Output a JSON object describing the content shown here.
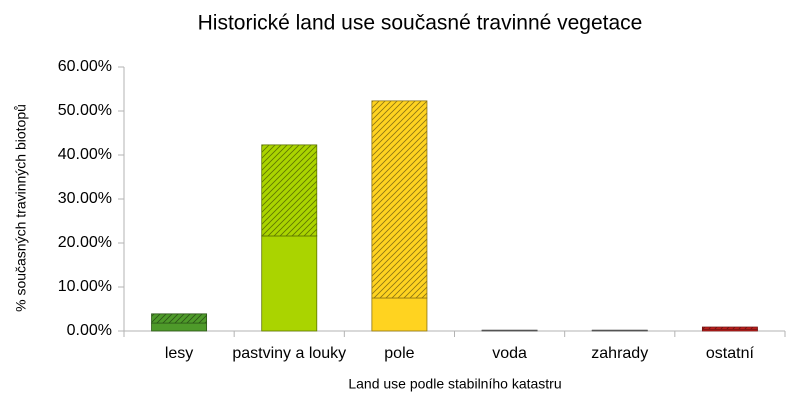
{
  "chart_data": {
    "type": "stacked_bar",
    "title": "Historické land use současné travinné vegetace",
    "x_label": "Land use podle stabilního katastru",
    "y_label": "% současných travinných biotopů",
    "categories": [
      "lesy",
      "pastviny a louky",
      "pole",
      "voda",
      "zahrady",
      "ostatní"
    ],
    "colors": [
      "#4e9a2a",
      "#aad400",
      "#ffd320",
      "#999999",
      "#999999",
      "#c9211e"
    ],
    "series": [
      {
        "values": [
          1.8,
          21.6,
          7.5,
          0.1,
          0.1,
          0.4
        ]
      },
      {
        "values": [
          2.1,
          20.7,
          44.8,
          0.1,
          0.1,
          0.5
        ],
        "pattern": "hatch"
      }
    ],
    "ylim": [
      0,
      60
    ],
    "yticks": [
      {
        "value": 0,
        "label": "0.00%"
      },
      {
        "value": 10,
        "label": "10.00%"
      },
      {
        "value": 20,
        "label": "20.00%"
      },
      {
        "value": 30,
        "label": "30.00%"
      },
      {
        "value": 40,
        "label": "40.00%"
      },
      {
        "value": 50,
        "label": "50.00%"
      },
      {
        "value": 60,
        "label": "60.00%"
      }
    ]
  }
}
